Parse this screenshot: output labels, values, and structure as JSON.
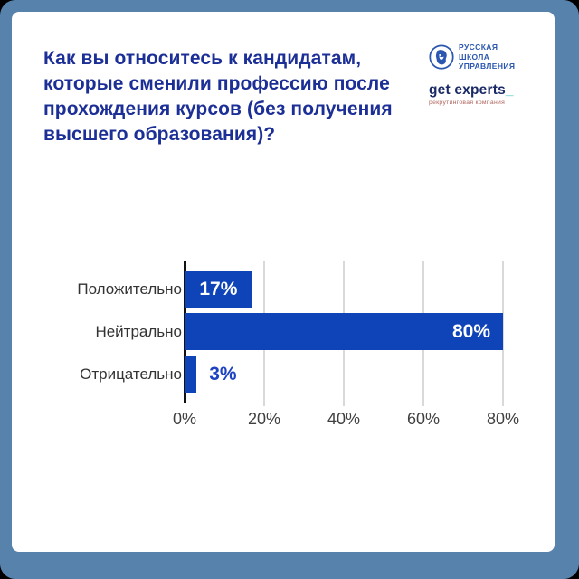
{
  "frame": {
    "border_color": "#5682ac",
    "card_color": "#ffffff",
    "outside_color": "#000000"
  },
  "header": {
    "title": "Как вы относитесь к кандидатам, которые сменили профессию после прохождения курсов (без получения высшего образования)?",
    "title_color": "#1c2f96"
  },
  "logos": {
    "rsu": {
      "lines": [
        "РУССКАЯ",
        "ШКОЛА",
        "УПРАВЛЕНИЯ"
      ],
      "color": "#2b57b0"
    },
    "get_experts": {
      "name": "get experts",
      "underscore": "_",
      "tagline": "рекрутинговая компания",
      "name_color": "#1a2a66",
      "underscore_color": "#3ec6c0",
      "tagline_color": "#b0655e"
    }
  },
  "chart_data": {
    "type": "bar",
    "orientation": "horizontal",
    "title": "",
    "categories": [
      "Положительно",
      "Нейтрально",
      "Отрицательно"
    ],
    "values": [
      17,
      80,
      3
    ],
    "value_labels": [
      "17%",
      "80%",
      "3%"
    ],
    "label_placement": [
      "inside-center",
      "inside-right",
      "outside"
    ],
    "xlim": [
      0,
      80
    ],
    "x_ticks": [
      0,
      20,
      40,
      60,
      80
    ],
    "x_tick_labels": [
      "0%",
      "20%",
      "40%",
      "60%",
      "80%"
    ],
    "grid": "vertical",
    "legend": "none",
    "bar_color": "#0e44b8",
    "value_label_inside_color": "#ffffff",
    "value_label_outside_color": "#1e43c2",
    "category_label_color": "#333333",
    "tick_label_color": "#404040",
    "gridline_color": "#d9d9d9",
    "axis_line_color": "#111111"
  }
}
